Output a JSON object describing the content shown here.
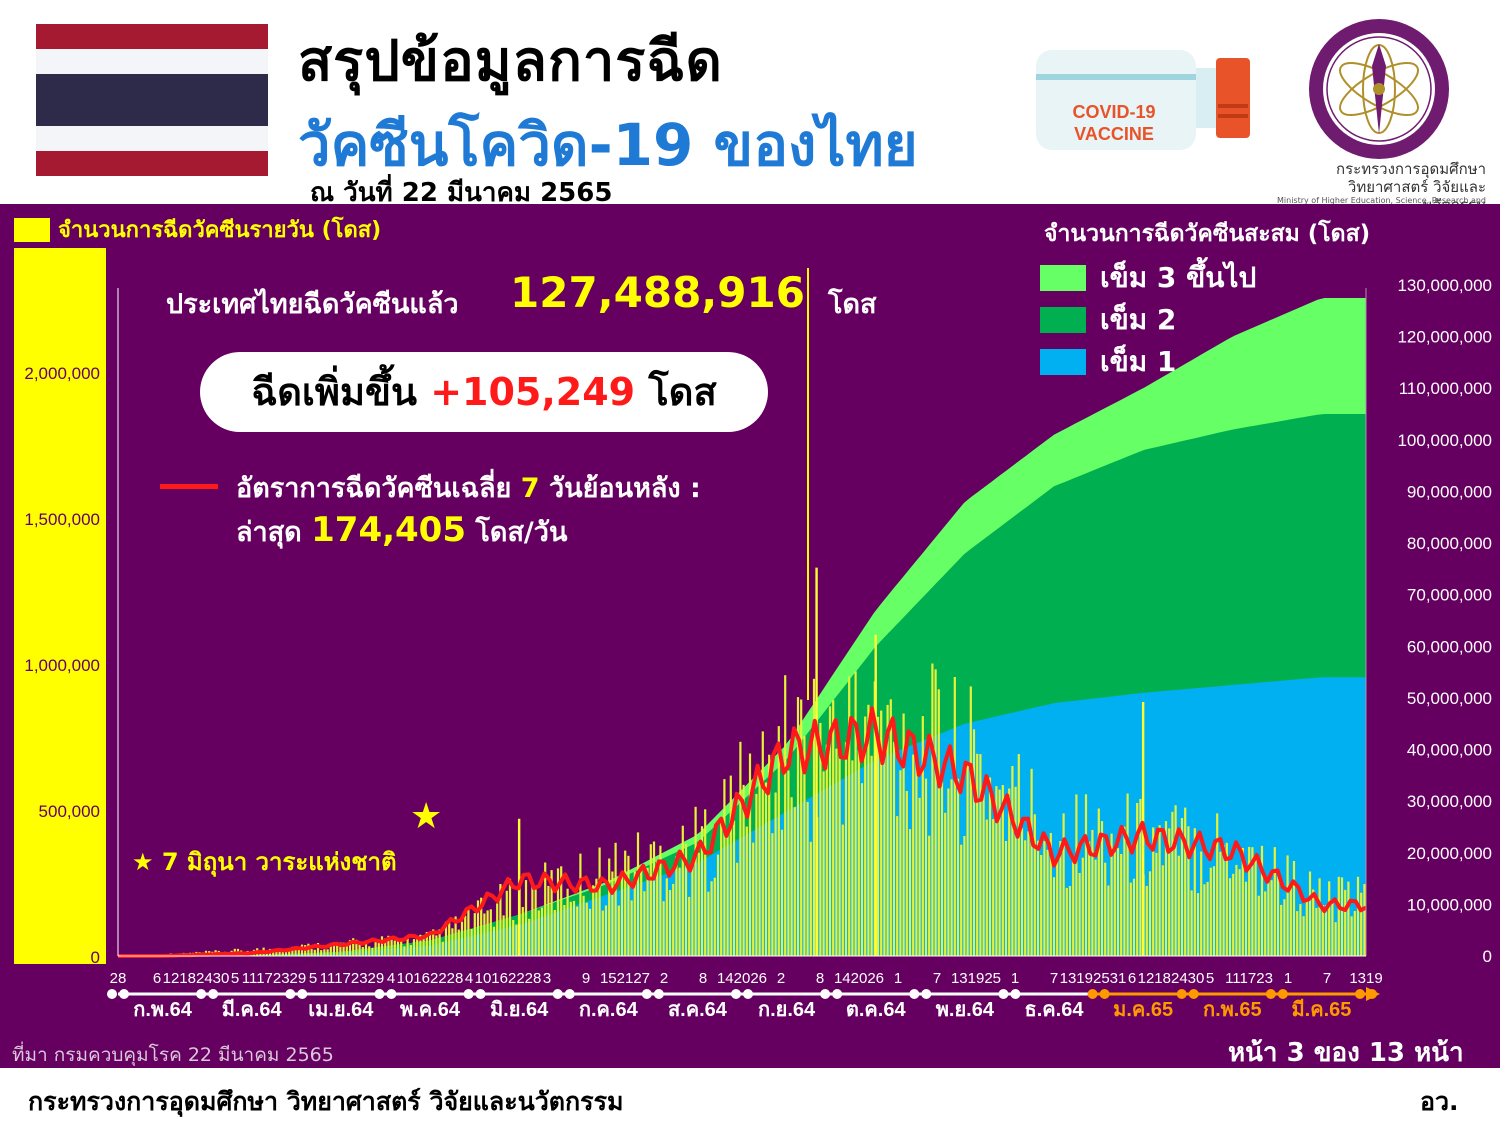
{
  "header": {
    "title_line1": "สรุปข้อมูลการฉีด",
    "title_line2": "วัคซีนโควิด-19 ของไทย",
    "date": "ณ วันที่ 22 มีนาคม 2565",
    "vaccine_label_1": "COVID-19",
    "vaccine_label_2": "VACCINE",
    "ministry_name_th": "กระทรวงการอุดมศึกษา วิทยาศาสตร์ วิจัยและนวัตกรรม",
    "ministry_name_en": "Ministry of Higher Education, Science, Research and Innovation",
    "flag_colors": [
      "#a51931",
      "#f4f5f8",
      "#2d2a4a",
      "#f4f5f8",
      "#a51931"
    ]
  },
  "chart_text": {
    "left_axis_title": "จำนวนการฉีดวัคซีนรายวัน (โดส)",
    "right_axis_title": "จำนวนการฉีดวัคซีนสะสม (โดส)",
    "total_label": "ประเทศไทยฉีดวัคซีนแล้ว",
    "total_value": "127,488,916",
    "total_unit": "โดส",
    "increase_label": "ฉีดเพิ่มขึ้น",
    "increase_value": "+105,249",
    "increase_unit": "โดส",
    "avg_label_pre": "อัตราการฉีดวัคซีนเฉลี่ย",
    "avg_days": "7",
    "avg_label_post": "วันย้อนหลัง :",
    "latest_label": "ล่าสุด",
    "latest_value": "174,405",
    "latest_unit": "โดส/วัน",
    "star_annotation": "7 มิถุนา วาระแห่งชาติ",
    "source": "ที่มา กรมควบคุมโรค 22 มีนาคม 2565",
    "page": "หน้า 3 ของ 13 หน้า"
  },
  "legend": [
    {
      "label": "เข็ม 3 ขึ้นไป",
      "color": "#66ff66"
    },
    {
      "label": "เข็ม 2",
      "color": "#00b050"
    },
    {
      "label": "เข็ม 1",
      "color": "#00b0f0"
    }
  ],
  "chart_data": {
    "type": "bar",
    "left_ticks": [
      "2,000,000",
      "1,500,000",
      "1,000,000",
      "500,000",
      "0"
    ],
    "left_tick_values": [
      2000000,
      1500000,
      1000000,
      500000,
      0
    ],
    "ylim_left": [
      0,
      2000000
    ],
    "right_ticks": [
      "130,000,000",
      "120,000,000",
      "110,000,000",
      "100,000,000",
      "90,000,000",
      "80,000,000",
      "70,000,000",
      "60,000,000",
      "50,000,000",
      "40,000,000",
      "30,000,000",
      "20,000,000",
      "10,000,000",
      "0"
    ],
    "right_tick_values": [
      130000000,
      120000000,
      110000000,
      100000000,
      90000000,
      80000000,
      70000000,
      60000000,
      50000000,
      40000000,
      30000000,
      20000000,
      10000000,
      0
    ],
    "ylim_right": [
      0,
      130000000
    ],
    "x_day_labels": [
      "28",
      "6",
      "12182430",
      "5",
      "11172329",
      "5",
      "11172329",
      "4",
      "10162228",
      "4",
      "10162228",
      "3",
      "9",
      "152127",
      "2",
      "8",
      "142026",
      "2",
      "8",
      "142026",
      "1",
      "7",
      "131925",
      "1",
      "7",
      "13192531",
      "6",
      "12182430",
      "5",
      "111723",
      "1",
      "7",
      "1319"
    ],
    "x_month_labels": [
      "ก.พ.64",
      "มี.ค.64",
      "เม.ย.64",
      "พ.ค.64",
      "มิ.ย.64",
      "ก.ค.64",
      "ส.ค.64",
      "ก.ย.64",
      "ต.ค.64",
      "พ.ย.64",
      "ธ.ค.64",
      "ม.ค.65",
      "ก.พ.65",
      "มี.ค.65"
    ],
    "x_month_highlight": [
      false,
      false,
      false,
      false,
      false,
      false,
      false,
      false,
      false,
      false,
      false,
      true,
      true,
      true
    ],
    "daily_doses_monthly_avg": {
      "months": [
        "ก.พ.64",
        "มี.ค.64",
        "เม.ย.64",
        "พ.ค.64",
        "มิ.ย.64",
        "ก.ค.64",
        "ส.ค.64",
        "ก.ย.64",
        "ต.ค.64",
        "พ.ย.64",
        "ธ.ค.64",
        "ม.ค.65",
        "ก.พ.65",
        "มี.ค.65"
      ],
      "values": [
        5000,
        20000,
        40000,
        60000,
        200000,
        280000,
        360000,
        680000,
        760000,
        660000,
        420000,
        390000,
        370000,
        190000
      ]
    },
    "daily_peaks": [
      {
        "month": "มิ.ย.64",
        "value": 470000
      },
      {
        "month": "ก.ย.64",
        "value": 1330000
      },
      {
        "month": "ต.ค.64",
        "value": 1100000
      },
      {
        "month": "ม.ค.65",
        "value": 870000
      }
    ],
    "series": [
      {
        "name": "เข็ม 1",
        "type": "area",
        "months": [
          "ก.พ.64",
          "มี.ค.64",
          "เม.ย.64",
          "พ.ค.64",
          "มิ.ย.64",
          "ก.ค.64",
          "ส.ค.64",
          "ก.ย.64",
          "ต.ค.64",
          "พ.ย.64",
          "ธ.ค.64",
          "ม.ค.65",
          "ก.พ.65",
          "มี.ค.65"
        ],
        "values": [
          0,
          100000,
          600000,
          2000000,
          6000000,
          12000000,
          18000000,
          28000000,
          38000000,
          45000000,
          49000000,
          51000000,
          52500000,
          54000000
        ]
      },
      {
        "name": "เข็ม 2",
        "type": "area",
        "months": [
          "ก.พ.64",
          "มี.ค.64",
          "เม.ย.64",
          "พ.ค.64",
          "มิ.ย.64",
          "ก.ค.64",
          "ส.ค.64",
          "ก.ย.64",
          "ต.ค.64",
          "พ.ย.64",
          "ธ.ค.64",
          "ม.ค.65",
          "ก.พ.65",
          "มี.ค.65"
        ],
        "values": [
          0,
          150000,
          800000,
          3000000,
          8000000,
          14000000,
          22000000,
          38000000,
          60000000,
          78000000,
          91000000,
          98000000,
          102000000,
          105000000
        ]
      },
      {
        "name": "เข็ม 3 ขึ้นไป",
        "type": "area",
        "months": [
          "ก.พ.64",
          "มี.ค.64",
          "เม.ย.64",
          "พ.ค.64",
          "มิ.ย.64",
          "ก.ค.64",
          "ส.ค.64",
          "ก.ย.64",
          "ต.ค.64",
          "พ.ย.64",
          "ธ.ค.64",
          "ม.ค.65",
          "ก.พ.65",
          "มี.ค.65"
        ],
        "values": [
          0,
          150000,
          800000,
          3000000,
          8000000,
          14500000,
          23500000,
          41000000,
          67000000,
          88000000,
          101000000,
          110000000,
          120000000,
          127488916
        ]
      },
      {
        "name": "อัตราการฉีดวัคซีนเฉลี่ย 7 วันย้อนหลัง",
        "type": "line",
        "months": [
          "ก.พ.64",
          "มี.ค.64",
          "เม.ย.64",
          "พ.ค.64",
          "มิ.ย.64",
          "ก.ค.64",
          "ส.ค.64",
          "ก.ย.64",
          "ต.ค.64",
          "พ.ย.64",
          "ธ.ค.64",
          "ม.ค.65",
          "ก.พ.65",
          "มี.ค.65"
        ],
        "values": [
          0,
          10000,
          40000,
          70000,
          260000,
          240000,
          340000,
          700000,
          760000,
          620000,
          350000,
          410000,
          360000,
          174405
        ]
      }
    ]
  }
}
